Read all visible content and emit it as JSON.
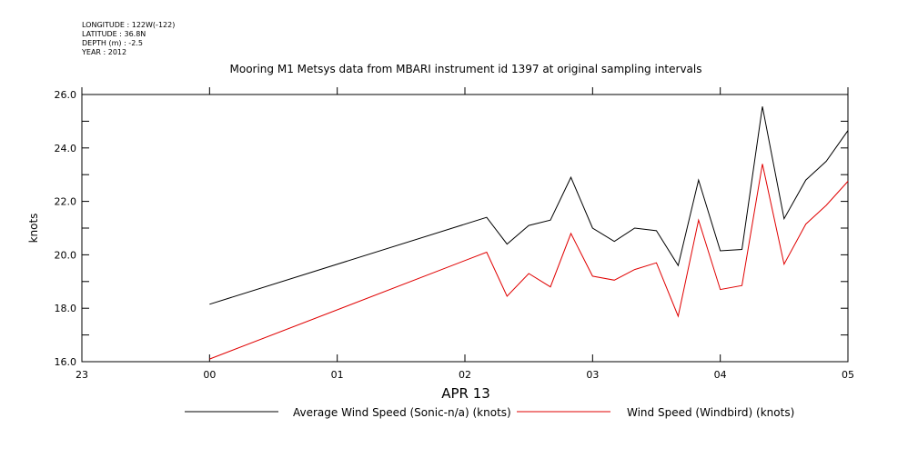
{
  "header": {
    "longitude": "LONGITUDE : 122W(-122)",
    "latitude": "LATITUDE : 36.8N",
    "depth": "DEPTH (m) : -2.5",
    "year": "YEAR : 2012"
  },
  "chart_data": {
    "type": "line",
    "title": "Mooring M1 Metsys data from MBARI instrument id 1397 at original sampling intervals",
    "ylabel": "knots",
    "xlabel": "APR 13",
    "ylim": [
      16.0,
      26.0
    ],
    "xlim": [
      -1,
      5
    ],
    "y_ticks": [
      "16.0",
      "18.0",
      "20.0",
      "22.0",
      "24.0",
      "26.0"
    ],
    "y_tick_values": [
      16,
      18,
      20,
      22,
      24,
      26
    ],
    "x_ticks": [
      "23",
      "00",
      "01",
      "02",
      "03",
      "04",
      "05"
    ],
    "x_tick_values": [
      -1,
      0,
      1,
      2,
      3,
      4,
      5
    ],
    "legend_position": "bottom",
    "grid": false,
    "series": [
      {
        "name": "Average Wind Speed (Sonic-n/a) (knots)",
        "color": "#000000",
        "x": [
          0.0,
          2.17,
          2.33,
          2.5,
          2.67,
          2.83,
          3.0,
          3.17,
          3.33,
          3.5,
          3.67,
          3.83,
          4.0,
          4.17,
          4.33,
          4.5,
          4.67,
          4.83,
          5.0
        ],
        "values": [
          18.15,
          21.4,
          20.4,
          21.1,
          21.3,
          22.9,
          21.0,
          20.5,
          21.0,
          20.9,
          19.6,
          22.8,
          20.15,
          20.2,
          25.55,
          21.35,
          22.8,
          23.5,
          24.65
        ]
      },
      {
        "name": "Wind Speed (Windbird) (knots)",
        "color": "#e00000",
        "x": [
          0.0,
          2.17,
          2.33,
          2.5,
          2.67,
          2.83,
          3.0,
          3.17,
          3.33,
          3.5,
          3.67,
          3.83,
          4.0,
          4.17,
          4.33,
          4.5,
          4.67,
          4.83,
          5.0
        ],
        "values": [
          16.1,
          20.1,
          18.45,
          19.3,
          18.8,
          20.8,
          19.2,
          19.05,
          19.45,
          19.7,
          17.7,
          21.3,
          18.7,
          18.85,
          23.4,
          19.65,
          21.15,
          21.85,
          22.75
        ]
      }
    ]
  }
}
